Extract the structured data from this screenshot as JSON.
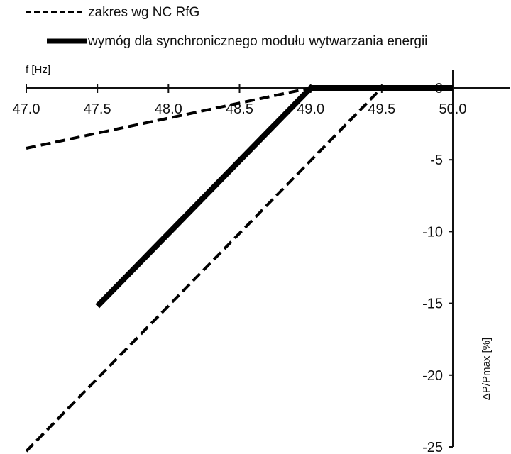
{
  "chart_data": {
    "type": "line",
    "xlabel": "f [Hz]",
    "ylabel": "ΔP/Pmax [%]",
    "xlim": [
      47.0,
      50.0
    ],
    "ylim": [
      -25,
      0
    ],
    "x_ticks": [
      "47.0",
      "47.5",
      "48.0",
      "48.5",
      "49.0",
      "49.5",
      "50.0"
    ],
    "y_ticks": [
      "0",
      "-5",
      "-10",
      "-15",
      "-20",
      "-25"
    ],
    "x_axis_position": "top",
    "y_axis_position": "right",
    "grid": false,
    "legend_position": "top-left",
    "series": [
      {
        "name": "zakres wg NC RfG",
        "style": "dashed",
        "color": "#000000",
        "lines": [
          [
            [
              47.0,
              -4.2
            ],
            [
              49.0,
              0
            ]
          ],
          [
            [
              47.0,
              -25.3
            ],
            [
              49.5,
              0
            ]
          ]
        ]
      },
      {
        "name": "wymóg dla synchronicznego modułu wytwarzania energii",
        "style": "solid-thick",
        "color": "#000000",
        "lines": [
          [
            [
              47.5,
              -15.2
            ],
            [
              49.0,
              0
            ],
            [
              50.0,
              0
            ]
          ]
        ]
      }
    ]
  }
}
